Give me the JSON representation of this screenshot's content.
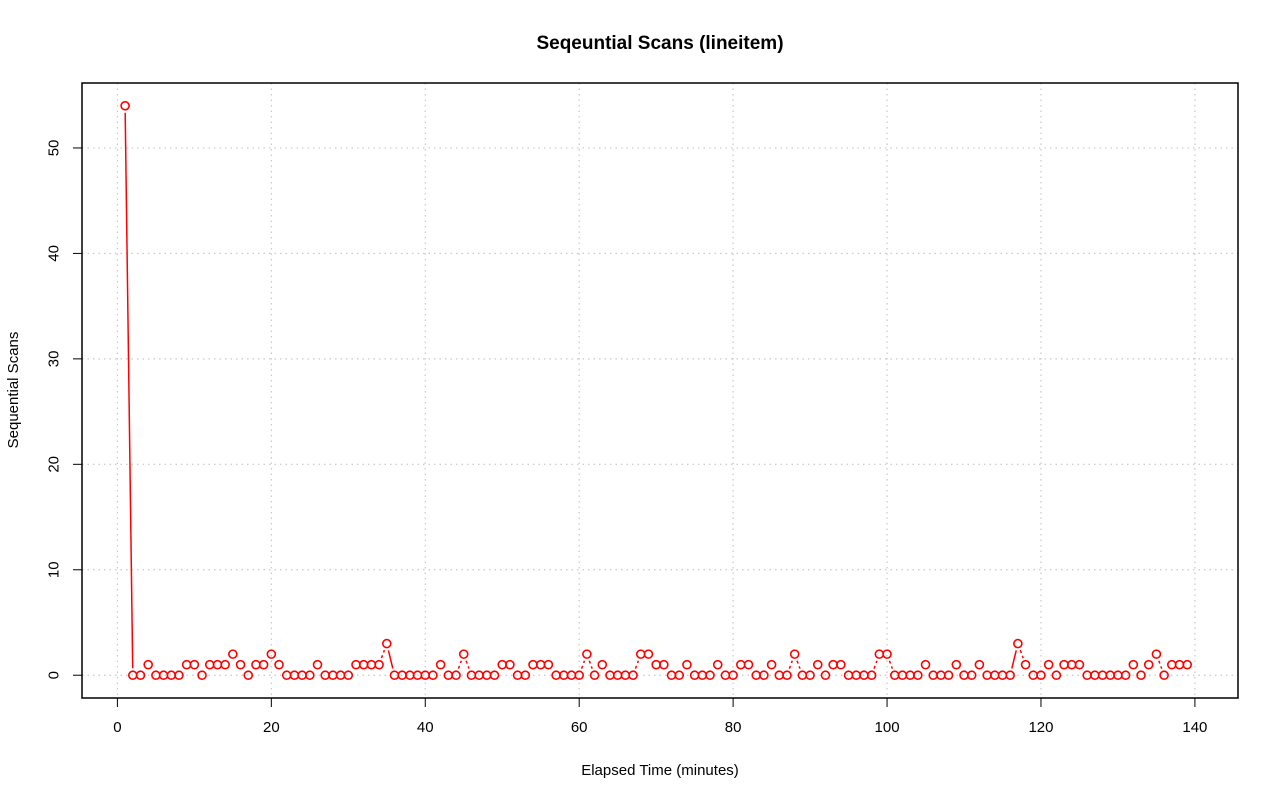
{
  "chart_data": {
    "type": "line",
    "title": "Seqeuntial Scans (lineitem)",
    "xlabel": "Elapsed Time (minutes)",
    "ylabel": "Sequential Scans",
    "xlim": [
      -4.6,
      145.6
    ],
    "ylim": [
      -2.16,
      56.16
    ],
    "xticks": [
      0,
      20,
      40,
      60,
      80,
      100,
      120,
      140
    ],
    "yticks": [
      0,
      10,
      20,
      30,
      40,
      50
    ],
    "grid": true,
    "grid_style": "dotted",
    "line_style": "dashed",
    "marker": "open-circle",
    "series": [
      {
        "color": "#ff0000",
        "x": [
          1,
          2,
          3,
          4,
          5,
          6,
          7,
          8,
          9,
          10,
          11,
          12,
          13,
          14,
          15,
          16,
          17,
          18,
          19,
          20,
          21,
          22,
          23,
          24,
          25,
          26,
          27,
          28,
          29,
          30,
          31,
          32,
          33,
          34,
          35,
          36,
          37,
          38,
          39,
          40,
          41,
          42,
          43,
          44,
          45,
          46,
          47,
          48,
          49,
          50,
          51,
          52,
          53,
          54,
          55,
          56,
          57,
          58,
          59,
          60,
          61,
          62,
          63,
          64,
          65,
          66,
          67,
          68,
          69,
          70,
          71,
          72,
          73,
          74,
          75,
          76,
          77,
          78,
          79,
          80,
          81,
          82,
          83,
          84,
          85,
          86,
          87,
          88,
          89,
          90,
          91,
          92,
          93,
          94,
          95,
          96,
          97,
          98,
          99,
          100,
          101,
          102,
          103,
          104,
          105,
          106,
          107,
          108,
          109,
          110,
          111,
          112,
          113,
          114,
          115,
          116,
          117,
          118,
          119,
          120,
          121,
          122,
          123,
          124,
          125,
          126,
          127,
          128,
          129,
          130,
          131,
          132,
          133,
          134,
          135,
          136,
          137,
          138,
          139
        ],
        "y": [
          54,
          0,
          0,
          1,
          0,
          0,
          0,
          0,
          1,
          1,
          0,
          1,
          1,
          1,
          2,
          1,
          0,
          1,
          1,
          2,
          1,
          0,
          0,
          0,
          0,
          1,
          0,
          0,
          0,
          0,
          1,
          1,
          1,
          1,
          3,
          0,
          0,
          0,
          0,
          0,
          0,
          1,
          0,
          0,
          2,
          0,
          0,
          0,
          0,
          1,
          1,
          0,
          0,
          1,
          1,
          1,
          0,
          0,
          0,
          0,
          2,
          0,
          1,
          0,
          0,
          0,
          0,
          2,
          2,
          1,
          1,
          0,
          0,
          1,
          0,
          0,
          0,
          1,
          0,
          0,
          1,
          1,
          0,
          0,
          1,
          0,
          0,
          2,
          0,
          0,
          1,
          0,
          1,
          1,
          0,
          0,
          0,
          0,
          2,
          2,
          0,
          0,
          0,
          0,
          1,
          0,
          0,
          0,
          1,
          0,
          0,
          1,
          0,
          0,
          0,
          0,
          3,
          1,
          0,
          0,
          1,
          0,
          1,
          1,
          1,
          0,
          0,
          0,
          0,
          0,
          0,
          1,
          0,
          1,
          2,
          0,
          1,
          1,
          1
        ]
      }
    ]
  }
}
